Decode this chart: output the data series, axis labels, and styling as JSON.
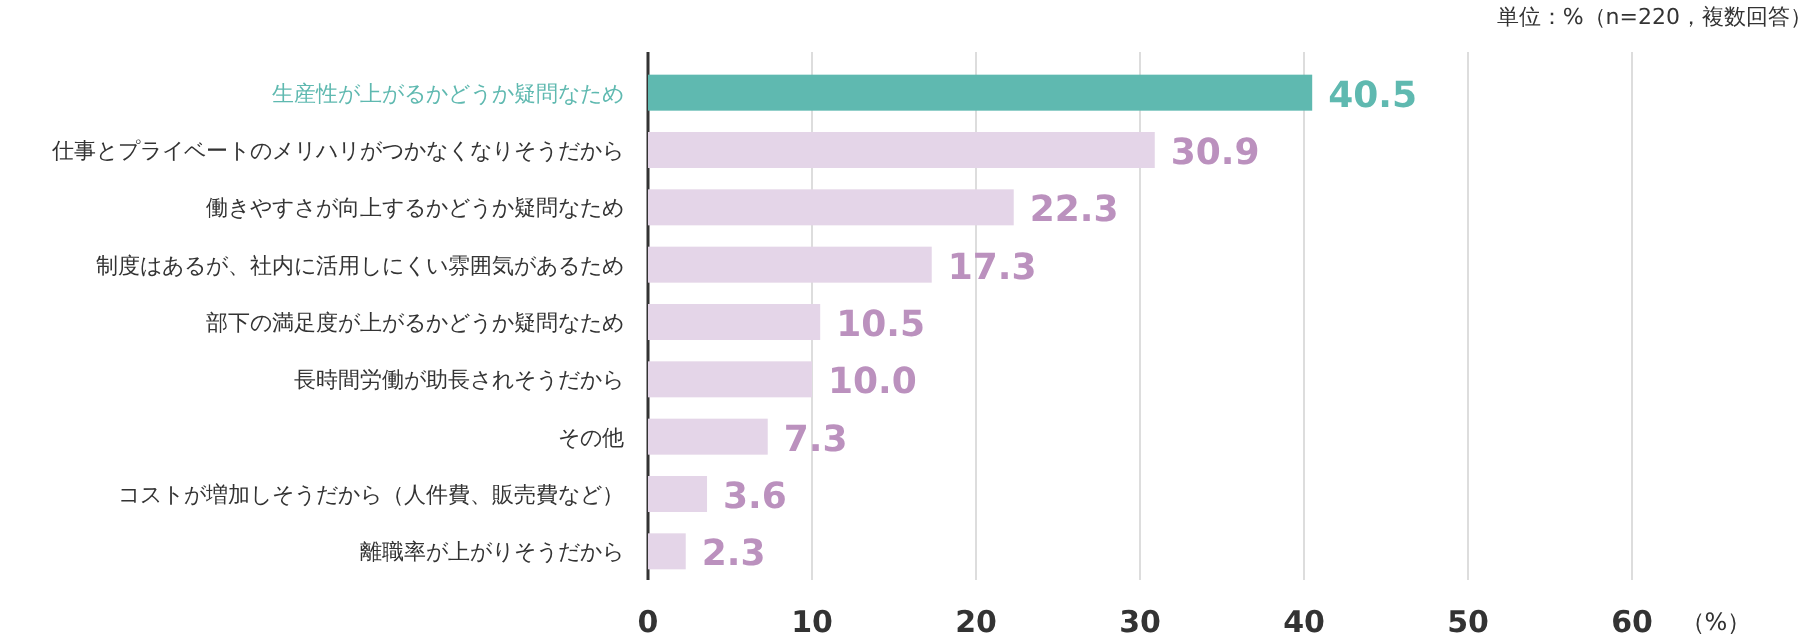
{
  "chart_data": {
    "type": "bar",
    "orientation": "horizontal",
    "categories": [
      "生産性が上がるかどうか疑問なため",
      "仕事とプライベートのメリハリがつかなくなりそうだから",
      "働きやすさが向上するかどうか疑問なため",
      "制度はあるが、社内に活用しにくい雰囲気があるため",
      "部下の満足度が上がるかどうか疑問なため",
      "長時間労働が助長されそうだから",
      "その他",
      "コストが増加しそうだから（人件費、販売費など）",
      "離職率が上がりそうだから"
    ],
    "values": [
      40.5,
      30.9,
      22.3,
      17.3,
      10.5,
      10.0,
      7.3,
      3.6,
      2.3
    ],
    "value_labels": [
      "40.5",
      "30.9",
      "22.3",
      "17.3",
      "10.5",
      "10.0",
      "7.3",
      "3.6",
      "2.3"
    ],
    "colors": [
      "#5fb9b0",
      "#e4d5e8",
      "#e4d5e8",
      "#e4d5e8",
      "#e4d5e8",
      "#e4d5e8",
      "#e4d5e8",
      "#e4d5e8",
      "#e4d5e8"
    ],
    "xlim": [
      0,
      60
    ],
    "xticks": [
      0,
      10,
      20,
      30,
      40,
      50,
      60
    ],
    "xlabel": "（%）",
    "grid": "x",
    "annotations": [
      "単位：%（n=220，複数回答）"
    ]
  }
}
